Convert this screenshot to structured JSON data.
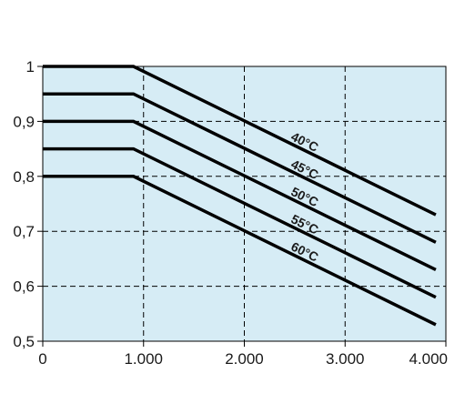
{
  "chart_data": {
    "type": "line",
    "title": "",
    "xlabel": "",
    "ylabel": "",
    "xlim": [
      0,
      4000
    ],
    "ylim": [
      0.5,
      1.0
    ],
    "x_ticks": [
      0,
      1000,
      2000,
      3000,
      4000
    ],
    "x_tick_labels": [
      "0",
      "1.000",
      "2.000",
      "3.000",
      "4.000"
    ],
    "y_ticks": [
      0.5,
      0.6,
      0.7,
      0.8,
      0.9,
      1.0
    ],
    "y_tick_labels": [
      "0,5",
      "0,6",
      "0,7",
      "0,8",
      "0,9",
      "1"
    ],
    "grid": true,
    "plot_background": "#d6ecf5",
    "grid_color": "#000000",
    "line_color": "#000000",
    "series": [
      {
        "name": "40°C",
        "x": [
          0,
          900,
          3900
        ],
        "y": [
          1.0,
          1.0,
          0.73
        ]
      },
      {
        "name": "45°C",
        "x": [
          0,
          900,
          3900
        ],
        "y": [
          0.95,
          0.95,
          0.68
        ]
      },
      {
        "name": "50°C",
        "x": [
          0,
          900,
          3900
        ],
        "y": [
          0.9,
          0.9,
          0.63
        ]
      },
      {
        "name": "55°C",
        "x": [
          0,
          900,
          3900
        ],
        "y": [
          0.85,
          0.85,
          0.58
        ]
      },
      {
        "name": "60°C",
        "x": [
          0,
          900,
          3900
        ],
        "y": [
          0.8,
          0.8,
          0.53
        ]
      }
    ]
  }
}
